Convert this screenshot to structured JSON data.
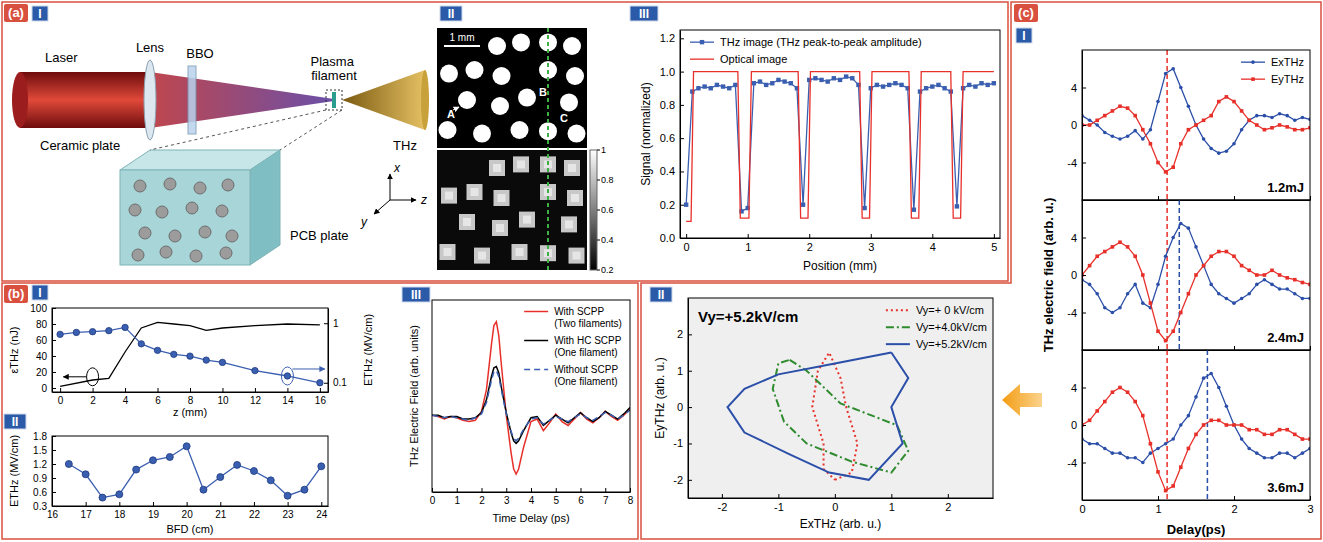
{
  "panel_labels": [
    "(a)",
    "(b)",
    "(c)"
  ],
  "part_labels": {
    "a": [
      "I",
      "II",
      "III"
    ],
    "b": [
      "I",
      "II",
      "III"
    ],
    "c": [
      "I",
      "II"
    ]
  },
  "schematic": {
    "labels": {
      "laser": "Laser",
      "lens": "Lens",
      "crystal": "BBO",
      "filament": "Plasma filament",
      "thz": "THz",
      "ceramic": "Ceramic plate",
      "pcb": "PCB plate",
      "x": "x",
      "y": "y",
      "z": "z"
    }
  },
  "images": {
    "scale_bar": "1 mm",
    "markers": [
      "A",
      "B",
      "C"
    ],
    "colorbar": {
      "range": [
        0.2,
        1
      ],
      "ticks": [
        1,
        0.8,
        0.6,
        0.4,
        0.2
      ]
    }
  },
  "chart_data": [
    {
      "type": "line",
      "xlabel": "Position (mm)",
      "ylabel": "Signal (normalized)",
      "xlim": [
        -0.1,
        5.1
      ],
      "xticks": [
        0,
        1,
        2,
        3,
        4,
        5
      ],
      "ylim": [
        0,
        1.25
      ],
      "yticks": [
        {
          "value": 0,
          "label": "0.0"
        },
        0.2,
        0.4,
        0.6,
        0.8,
        {
          "value": 1,
          "label": "1.0"
        },
        1.2
      ],
      "legend": "upper left",
      "series": [
        {
          "name": "THz image (THz peak-to-peak amplitude)",
          "color": "#3b5fb0",
          "marker": "square",
          "line_style": "solid",
          "x": [
            0,
            0.1,
            0.2,
            0.3,
            0.4,
            0.5,
            0.6,
            0.7,
            0.8,
            0.9,
            1,
            1.1,
            1.2,
            1.3,
            1.4,
            1.5,
            1.6,
            1.7,
            1.8,
            1.9,
            2,
            2.1,
            2.2,
            2.3,
            2.4,
            2.5,
            2.6,
            2.7,
            2.8,
            2.9,
            3,
            3.1,
            3.2,
            3.3,
            3.4,
            3.5,
            3.6,
            3.7,
            3.8,
            3.9,
            4,
            4.1,
            4.2,
            4.3,
            4.4,
            4.5,
            4.6,
            4.7,
            4.8,
            4.9,
            5
          ],
          "values": [
            0.2,
            0.88,
            0.9,
            0.91,
            0.9,
            0.92,
            0.91,
            0.9,
            0.92,
            0.16,
            0.18,
            0.93,
            0.94,
            0.92,
            0.93,
            0.95,
            0.94,
            0.93,
            0.9,
            0.2,
            0.95,
            0.96,
            0.95,
            0.94,
            0.96,
            0.95,
            0.97,
            0.96,
            0.92,
            0.18,
            0.9,
            0.92,
            0.91,
            0.92,
            0.93,
            0.92,
            0.9,
            0.17,
            0.88,
            0.9,
            0.91,
            0.92,
            0.9,
            0.88,
            0.19,
            0.9,
            0.92,
            0.91,
            0.93,
            0.92,
            0.93
          ]
        },
        {
          "name": "Optical image",
          "color": "#e8302a",
          "line_style": "solid",
          "x": [
            0,
            0.08,
            0.12,
            0.84,
            0.88,
            1.02,
            1.06,
            1.82,
            1.86,
            1.98,
            2.02,
            2.82,
            2.86,
            2.98,
            3.02,
            3.62,
            3.66,
            3.78,
            3.82,
            4.3,
            4.34,
            4.46,
            4.5,
            5
          ],
          "values": [
            0.1,
            0.1,
            1,
            1,
            0.12,
            0.12,
            1,
            1,
            0.12,
            0.12,
            1,
            1,
            0.12,
            0.12,
            1,
            1,
            0.12,
            0.12,
            1,
            1,
            0.12,
            0.12,
            1,
            1
          ]
        }
      ]
    },
    {
      "type": "line",
      "xlabel": "z (mm)",
      "ylabel": "εTHz (nJ)",
      "y2label": "ETHz (MV/cm)",
      "xlim": [
        -0.5,
        16.5
      ],
      "xticks": [
        0,
        2,
        4,
        6,
        8,
        10,
        12,
        14,
        16
      ],
      "ylim": [
        -5,
        100
      ],
      "yticks": [
        0,
        20,
        40,
        60,
        80,
        100
      ],
      "y2lim": [
        0.07,
        1.8
      ],
      "y2ticks": [
        0.1,
        1
      ],
      "log": "y2",
      "series": [
        {
          "color": "#000000",
          "line_style": "solid",
          "x": [
            0,
            2,
            3,
            4,
            5,
            6,
            7,
            8,
            9,
            10,
            12,
            14,
            16
          ],
          "values": [
            2,
            10,
            12,
            45,
            75,
            82,
            80,
            78,
            72,
            75,
            78,
            80,
            79
          ]
        },
        {
          "color": "#3b5fb0",
          "marker": "circle",
          "line_style": "solid",
          "axis": "y2",
          "x": [
            0,
            1,
            2,
            3,
            4,
            5,
            6,
            7,
            8,
            9,
            10,
            12,
            14,
            16
          ],
          "values": [
            0.65,
            0.7,
            0.72,
            0.75,
            0.85,
            0.45,
            0.35,
            0.3,
            0.28,
            0.24,
            0.22,
            0.16,
            0.13,
            0.1
          ]
        }
      ]
    },
    {
      "type": "line",
      "xlabel": "BFD (cm)",
      "ylabel": "ETHz (MV/cm)",
      "xlim": [
        16,
        24.2
      ],
      "xticks": [
        16,
        17,
        18,
        19,
        20,
        21,
        22,
        23,
        24
      ],
      "ylim": [
        0.3,
        1.8
      ],
      "yticks": [
        0.3,
        0.6,
        0.9,
        1.2,
        1.5,
        1.8
      ],
      "series": [
        {
          "color": "#3b5fb0",
          "marker": "circle",
          "line_style": "solid",
          "x": [
            16.5,
            17,
            17.5,
            18,
            18.5,
            19,
            19.5,
            20,
            20.5,
            21,
            21.5,
            22,
            22.5,
            23,
            23.5,
            24
          ],
          "values": [
            1.2,
            0.98,
            0.48,
            0.55,
            1.08,
            1.28,
            1.35,
            1.58,
            0.65,
            0.92,
            1.18,
            1.05,
            0.85,
            0.52,
            0.65,
            1.15
          ]
        }
      ]
    },
    {
      "type": "line",
      "xlabel": "Time Delay (ps)",
      "ylabel": "THz Electric Field (arb. units)",
      "xlim": [
        0,
        8
      ],
      "xticks": [
        0,
        1,
        2,
        3,
        4,
        5,
        6,
        7,
        8
      ],
      "ylim": [
        -60,
        90
      ],
      "tick_labels": "x",
      "legend": "upper right",
      "x": [
        0,
        0.25,
        0.5,
        0.75,
        1,
        1.25,
        1.5,
        1.75,
        2,
        2.2,
        2.4,
        2.5,
        2.6,
        2.7,
        2.8,
        3,
        3.2,
        3.3,
        3.4,
        3.5,
        3.7,
        4,
        4.25,
        4.5,
        4.75,
        5,
        5.25,
        5.5,
        5.75,
        6,
        6.25,
        6.5,
        6.75,
        7,
        7.25,
        7.5,
        7.75,
        8
      ],
      "series": [
        {
          "name": "With SCPP (Two filaments)",
          "color": "#e8302a",
          "line_style": "solid",
          "values": [
            0,
            -1,
            -3,
            -1,
            -2,
            -4,
            -5,
            -4,
            3,
            20,
            55,
            70,
            73,
            62,
            40,
            0,
            -30,
            -42,
            -46,
            -42,
            -25,
            -5,
            -3,
            -12,
            -6,
            1,
            -5,
            -8,
            -3,
            2,
            -3,
            -6,
            -2,
            3,
            -1,
            -4,
            0,
            5
          ]
        },
        {
          "name": "With HC SCPP (One filament)",
          "color": "#000000",
          "line_style": "solid",
          "values": [
            0,
            0,
            -2,
            -1,
            -1,
            -3,
            -3,
            -2,
            2,
            12,
            30,
            37,
            38,
            33,
            22,
            2,
            -14,
            -20,
            -22,
            -20,
            -12,
            -2,
            -1,
            -8,
            -4,
            0,
            -3,
            -6,
            -2,
            2,
            -2,
            -5,
            -2,
            3,
            0,
            -3,
            1,
            6
          ]
        },
        {
          "name": "Without SCPP (One filament)",
          "color": "#3b5fb0",
          "line_style": "dashed",
          "values": [
            0,
            -1,
            -2,
            -1,
            -2,
            -3,
            -4,
            -2,
            1,
            10,
            27,
            34,
            35,
            30,
            20,
            1,
            -13,
            -18,
            -20,
            -18,
            -11,
            -3,
            -2,
            -7,
            -4,
            -1,
            -3,
            -5,
            -2,
            1,
            -2,
            -4,
            -1,
            2,
            0,
            -3,
            0,
            4
          ]
        }
      ]
    },
    {
      "type": "line",
      "xlim": [
        0,
        3
      ],
      "xticks": [
        0,
        1,
        2,
        3
      ],
      "ylim": [
        -8,
        8
      ],
      "yticks": [
        -4,
        0,
        4
      ],
      "tick_labels": "y",
      "legend": "upper right",
      "annotations": [
        "1.2mJ"
      ],
      "vlines": [
        {
          "value": 1.12,
          "color": "#e8302a"
        }
      ],
      "x": [
        0,
        0.1,
        0.2,
        0.3,
        0.4,
        0.5,
        0.6,
        0.7,
        0.8,
        0.9,
        1,
        1.1,
        1.2,
        1.3,
        1.4,
        1.5,
        1.6,
        1.7,
        1.8,
        1.9,
        2,
        2.1,
        2.2,
        2.3,
        2.4,
        2.5,
        2.6,
        2.7,
        2.8,
        2.9,
        3
      ],
      "series": [
        {
          "name": "ExTHz",
          "color": "#2b4fa8",
          "marker": "circle",
          "line_style": "solid",
          "values": [
            1,
            0.5,
            0,
            -0.8,
            -1.2,
            -1.5,
            -1.2,
            -0.6,
            -1.5,
            -0.5,
            2.5,
            5.5,
            6,
            4,
            2,
            0,
            -1.5,
            -2.5,
            -3,
            -2.8,
            -2,
            -0.5,
            0.5,
            1,
            1,
            0.8,
            1.2,
            1,
            0.5,
            0.8,
            0.6
          ]
        },
        {
          "name": "EyTHz",
          "color": "#e8302a",
          "marker": "square",
          "line_style": "solid",
          "values": [
            0,
            0,
            0.5,
            1,
            1.5,
            2,
            1.8,
            1,
            -0.5,
            -2,
            -4,
            -5,
            -4.5,
            -2,
            -0.5,
            0,
            0.5,
            1,
            2.5,
            3,
            2.5,
            1.5,
            0.5,
            0,
            -0.5,
            -0.3,
            0,
            -0.2,
            -0.5,
            -0.5,
            -0.3
          ]
        }
      ]
    },
    {
      "type": "line",
      "ylabel": "THz electric field (arb. u.)",
      "xlim": [
        0,
        3
      ],
      "xticks": [
        0,
        1,
        2,
        3
      ],
      "ylim": [
        -8,
        8
      ],
      "yticks": [
        -4,
        0,
        4
      ],
      "tick_labels": "y",
      "annotations": [
        "2.4mJ"
      ],
      "vlines": [
        {
          "value": 1.12,
          "color": "#e8302a"
        },
        {
          "value": 1.28,
          "color": "#2b4fa8"
        }
      ],
      "x": [
        0,
        0.1,
        0.2,
        0.3,
        0.4,
        0.5,
        0.6,
        0.7,
        0.8,
        0.9,
        1,
        1.1,
        1.2,
        1.3,
        1.4,
        1.5,
        1.6,
        1.7,
        1.8,
        1.9,
        2,
        2.1,
        2.2,
        2.3,
        2.4,
        2.5,
        2.6,
        2.7,
        2.8,
        2.9,
        3
      ],
      "series": [
        {
          "color": "#2b4fa8",
          "marker": "circle",
          "line_style": "solid",
          "values": [
            -0.5,
            -1,
            -2,
            -3.5,
            -4,
            -3.5,
            -2,
            -1,
            -3,
            -3.5,
            -1,
            2,
            4,
            5.5,
            5,
            3,
            1,
            -1,
            -2,
            -2.5,
            -3,
            -2.5,
            -2,
            -1,
            -0.5,
            -1,
            -1.5,
            -1.5,
            -2,
            -2.5,
            -2.5
          ]
        },
        {
          "color": "#e8302a",
          "marker": "square",
          "line_style": "solid",
          "values": [
            0,
            1,
            2,
            2.5,
            3,
            3.5,
            3,
            2,
            0,
            -3,
            -6,
            -7,
            -6,
            -4,
            -2,
            0,
            1,
            2,
            2.5,
            2.5,
            2,
            1,
            0.5,
            0,
            0,
            0.5,
            0,
            -0.3,
            -0.5,
            -0.8,
            -1
          ]
        }
      ]
    },
    {
      "type": "line",
      "xlabel": "Delay(ps)",
      "xlim": [
        0,
        3
      ],
      "xticks": [
        0,
        1,
        2,
        3
      ],
      "ylim": [
        -8,
        8
      ],
      "yticks": [
        -4,
        0,
        4
      ],
      "annotations": [
        "3.6mJ"
      ],
      "vlines": [
        {
          "value": 1.12,
          "color": "#e8302a"
        },
        {
          "value": 1.65,
          "color": "#2b4fa8"
        }
      ],
      "x": [
        0,
        0.1,
        0.2,
        0.3,
        0.4,
        0.5,
        0.6,
        0.7,
        0.8,
        0.9,
        1,
        1.1,
        1.2,
        1.3,
        1.4,
        1.5,
        1.6,
        1.7,
        1.8,
        1.9,
        2,
        2.1,
        2.2,
        2.3,
        2.4,
        2.5,
        2.6,
        2.7,
        2.8,
        2.9,
        3
      ],
      "series": [
        {
          "color": "#2b4fa8",
          "marker": "circle",
          "line_style": "solid",
          "values": [
            -1.5,
            -2,
            -2,
            -2.5,
            -3,
            -3,
            -3.5,
            -3.5,
            -4,
            -3,
            -2.5,
            -2,
            -1.5,
            0,
            1,
            3,
            5,
            5.5,
            4,
            2,
            0,
            -1.5,
            -2.5,
            -3,
            -3.5,
            -3.5,
            -3,
            -3,
            -3.5,
            -3,
            -2.5
          ]
        },
        {
          "color": "#e8302a",
          "marker": "square",
          "line_style": "solid",
          "values": [
            0,
            0.5,
            1.5,
            2.5,
            3.5,
            4,
            3.5,
            2.5,
            1,
            -2,
            -5,
            -7,
            -6.5,
            -4.5,
            -2.5,
            -1,
            0,
            0.5,
            0.5,
            0,
            0,
            0,
            -0.5,
            -0.5,
            -1,
            -1,
            -0.5,
            -0.5,
            -1,
            -1.5,
            -1.5
          ]
        }
      ]
    },
    {
      "type": "line",
      "xlabel": "ExTHz (arb. u.)",
      "ylabel": "EyTHz (arb. u.)",
      "xlim": [
        -2.6,
        2.8
      ],
      "xticks": [
        -2,
        -1,
        0,
        1,
        2
      ],
      "ylim": [
        -2.5,
        3
      ],
      "yticks": [
        -2,
        -1,
        0,
        1,
        2
      ],
      "legend": "upper right",
      "annotations": [
        "Vy=+5.2kV/cm"
      ],
      "series": [
        {
          "name": "Vy=+ 0 kV/cm",
          "color": "#e8302a",
          "line_style": "dotted",
          "x": [
            0,
            0.3,
            0.4,
            0.2,
            0.1,
            -0.1,
            -0.3,
            -0.4,
            -0.2,
            -0.2,
            0
          ],
          "values": [
            -2,
            -1.8,
            -1,
            0,
            0.8,
            1.5,
            1,
            0,
            -1,
            -1.7,
            -2
          ]
        },
        {
          "name": "Vy=+4.0kV/cm",
          "color": "#2e8b2e",
          "line_style": "dashdot",
          "x": [
            -0.8,
            -0.5,
            0.1,
            0.6,
            1.1,
            1.3,
            1,
            0.3,
            -0.5,
            -0.9,
            -1.1,
            -1,
            -0.8
          ],
          "values": [
            1.3,
            1,
            0.1,
            -0.2,
            -0.5,
            -1.2,
            -1.8,
            -1.5,
            -1,
            -0.4,
            0.5,
            1.2,
            1.3
          ]
        },
        {
          "name": "Vy=+5.2kV/cm",
          "color": "#2b4fa8",
          "line_style": "solid",
          "x": [
            1,
            1.3,
            1,
            1.2,
            0.6,
            -0.1,
            -0.8,
            -1.6,
            -1.9,
            -1.6,
            -1,
            0,
            1
          ],
          "values": [
            1.5,
            0.8,
            0,
            -1,
            -2,
            -1.8,
            -1.3,
            -0.7,
            0,
            0.5,
            0.9,
            1.2,
            1.5
          ]
        }
      ]
    }
  ]
}
